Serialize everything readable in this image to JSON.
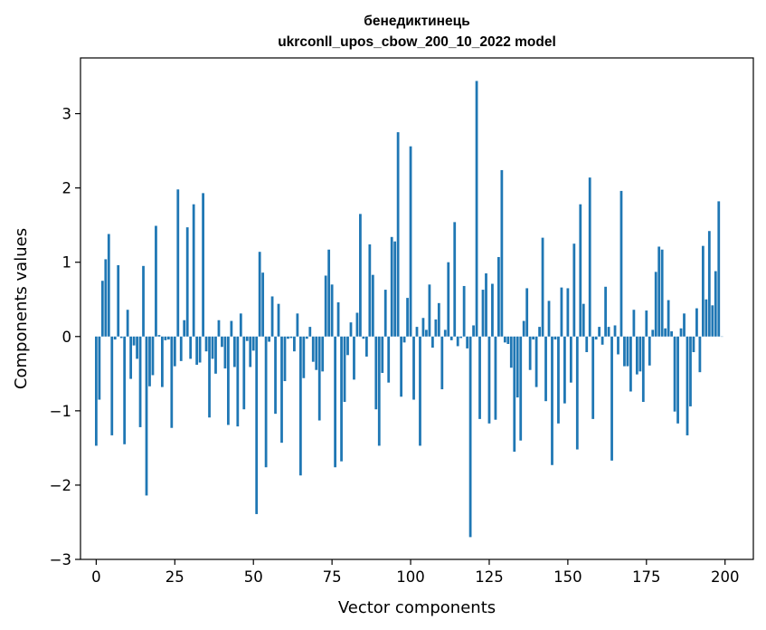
{
  "chart_data": {
    "type": "bar",
    "title": "бенедиктинець",
    "subtitle": "ukrconll_upos_cbow_200_10_2022 model",
    "xlabel": "Vector components",
    "ylabel": "Components values",
    "xlim": [
      -5,
      209
    ],
    "ylim": [
      -3.0,
      3.75
    ],
    "xticks": [
      0,
      25,
      50,
      75,
      100,
      125,
      150,
      175,
      200
    ],
    "yticks": [
      -3,
      -2,
      -1,
      0,
      1,
      2,
      3
    ],
    "ytick_labels": [
      "−3",
      "−2",
      "−1",
      "0",
      "1",
      "2",
      "3"
    ],
    "grid": false,
    "color": "#1f77b4",
    "values": [
      -1.47,
      -0.85,
      0.75,
      1.04,
      1.38,
      -1.33,
      -0.04,
      0.96,
      -0.02,
      -1.45,
      0.36,
      -0.57,
      -0.12,
      -0.3,
      -1.22,
      0.95,
      -2.14,
      -0.67,
      -0.52,
      1.49,
      0.02,
      -0.68,
      -0.05,
      -0.04,
      -1.23,
      -0.4,
      1.98,
      -0.33,
      0.22,
      1.47,
      -0.3,
      1.78,
      -0.38,
      -0.35,
      1.93,
      -0.2,
      -1.09,
      -0.3,
      -0.5,
      0.22,
      -0.14,
      -0.43,
      -1.19,
      0.21,
      -0.41,
      -1.21,
      0.31,
      -0.98,
      -0.06,
      -0.41,
      -0.19,
      -2.39,
      1.14,
      0.86,
      -1.76,
      -0.07,
      0.54,
      -1.04,
      0.44,
      -1.43,
      -0.6,
      -0.03,
      -0.02,
      -0.2,
      0.31,
      -1.87,
      -0.56,
      -0.03,
      0.13,
      -0.34,
      -0.45,
      -1.13,
      -0.47,
      0.82,
      1.17,
      0.7,
      -1.76,
      0.46,
      -1.68,
      -0.88,
      -0.25,
      0.19,
      -0.58,
      0.32,
      1.65,
      -0.03,
      -0.27,
      1.24,
      0.83,
      -0.98,
      -1.47,
      -0.49,
      0.63,
      -0.62,
      1.34,
      1.28,
      2.75,
      -0.81,
      -0.08,
      0.52,
      2.56,
      -0.85,
      0.13,
      -1.47,
      0.25,
      0.09,
      0.7,
      -0.15,
      0.23,
      0.45,
      -0.71,
      0.09,
      1.0,
      -0.05,
      1.54,
      -0.13,
      -0.02,
      0.68,
      -0.16,
      -2.7,
      0.15,
      3.44,
      -1.11,
      0.63,
      0.85,
      -1.17,
      0.71,
      -1.12,
      1.07,
      2.24,
      -0.08,
      -0.1,
      -0.42,
      -1.55,
      -0.82,
      -1.4,
      0.21,
      0.65,
      -0.45,
      -0.04,
      -0.68,
      0.13,
      1.33,
      -0.87,
      0.48,
      -1.73,
      -0.04,
      -1.17,
      0.66,
      -0.9,
      0.65,
      -0.62,
      1.25,
      -1.52,
      1.78,
      0.44,
      -0.21,
      2.14,
      -1.11,
      -0.04,
      0.13,
      -0.11,
      0.67,
      0.13,
      -1.67,
      0.15,
      -0.24,
      1.96,
      -0.4,
      -0.4,
      -0.74,
      0.36,
      -0.51,
      -0.47,
      -0.88,
      0.35,
      -0.39,
      0.09,
      0.87,
      1.21,
      1.17,
      0.11,
      0.49,
      0.07,
      -1.01,
      -1.17,
      0.11,
      0.31,
      -1.33,
      -0.94,
      -0.21,
      0.38,
      -0.48,
      1.22,
      0.5,
      1.42,
      0.42,
      0.88,
      1.82,
      0.0
    ]
  }
}
